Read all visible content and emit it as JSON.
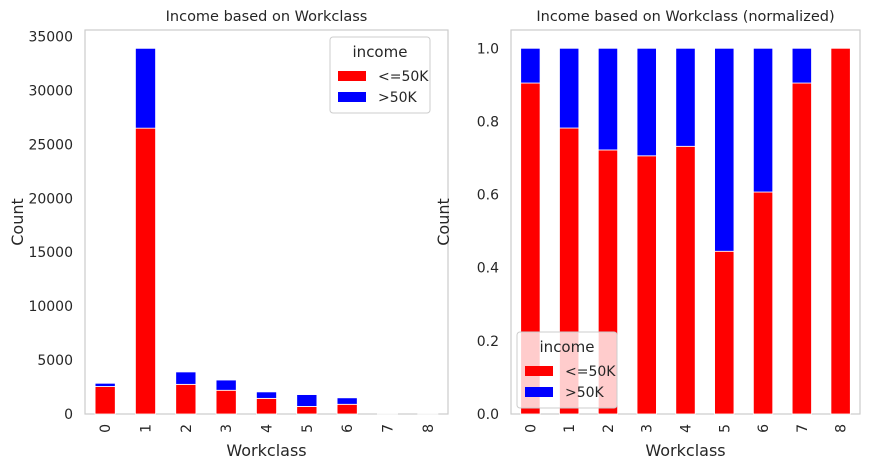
{
  "colors": {
    "le50k": "#ff0000",
    "gt50k": "#0000ff",
    "axes_edge": "#cccccc",
    "text": "#262626"
  },
  "chart_data": [
    {
      "type": "bar",
      "stacked": true,
      "title": "Income based on Workclass",
      "xlabel": "Workclass",
      "ylabel": "Count",
      "categories": [
        "0",
        "1",
        "2",
        "3",
        "4",
        "5",
        "6",
        "7",
        "8"
      ],
      "ylim": [
        0,
        35600
      ],
      "yticks": [
        0,
        5000,
        10000,
        15000,
        20000,
        25000,
        30000,
        35000
      ],
      "ytick_labels": [
        "0",
        "5000",
        "10000",
        "15000",
        "20000",
        "25000",
        "30000",
        "35000"
      ],
      "grid": false,
      "legend": {
        "title": "income",
        "placement": "upper-right"
      },
      "series": [
        {
          "name": "<=50K",
          "color": "#ff0000",
          "values": [
            2550,
            26500,
            2750,
            2200,
            1450,
            700,
            900,
            10,
            15
          ]
        },
        {
          "name": ">50K",
          "color": "#0000ff",
          "values": [
            300,
            7400,
            1150,
            950,
            600,
            1100,
            600,
            0,
            0
          ]
        }
      ]
    },
    {
      "type": "bar",
      "stacked": true,
      "title": "Income based on Workclass (normalized)",
      "xlabel": "Workclass",
      "ylabel": "Count",
      "categories": [
        "0",
        "1",
        "2",
        "3",
        "4",
        "5",
        "6",
        "7",
        "8"
      ],
      "ylim": [
        0,
        1.05
      ],
      "yticks": [
        0,
        0.2,
        0.4,
        0.6,
        0.8,
        1.0
      ],
      "ytick_labels": [
        "0.0",
        "0.2",
        "0.4",
        "0.6",
        "0.8",
        "1.0"
      ],
      "grid": false,
      "legend": {
        "title": "income",
        "placement": "lower-left"
      },
      "series": [
        {
          "name": "<=50K",
          "color": "#ff0000",
          "values": [
            0.905,
            0.782,
            0.722,
            0.706,
            0.732,
            0.445,
            0.607,
            0.905,
            1.0
          ]
        },
        {
          "name": ">50K",
          "color": "#0000ff",
          "values": [
            0.095,
            0.218,
            0.278,
            0.294,
            0.268,
            0.555,
            0.393,
            0.095,
            0.0
          ]
        }
      ]
    }
  ]
}
